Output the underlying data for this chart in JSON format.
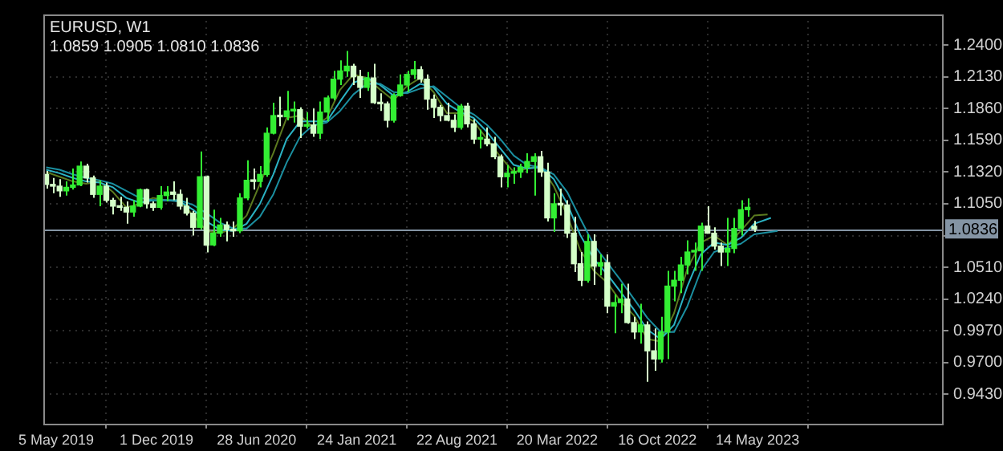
{
  "chart_data": {
    "type": "candlestick",
    "title": "EURUSD, W1",
    "subtitle": "1.0859 1.0905 1.0810 1.0836",
    "colors": [
      "#d4ffc8",
      "#d4ffc8",
      "#d4ffc8",
      "#33ee33",
      "#33ee33",
      "#33ee33",
      "#d4ffc8",
      "#d4ffc8",
      "#33ee33",
      "#d4ffc8",
      "#d4ffc8",
      "#d4ffc8",
      "#d4ffc8",
      "#33ee33",
      "#33ee33",
      "#d4ffc8",
      "#d4ffc8",
      "#33ee33",
      "#33ee33",
      "#d4ffc8",
      "#d4ffc8",
      "#d4ffc8",
      "#d4ffc8",
      "#33ee33",
      "#d4ffc8",
      "#33ee33",
      "#33ee33",
      "#d4ffc8",
      "#d4ffc8",
      "#33ee33",
      "#33ee33",
      "#d4ffc8",
      "#33ee33",
      "#33ee33",
      "#33ee33",
      "#d4ffc8",
      "#33ee33",
      "#33ee33",
      "#d4ffc8",
      "#33ee33",
      "#d4ffc8",
      "#33ee33",
      "#33ee33",
      "#33ee33",
      "#33ee33",
      "#33ee33",
      "#d4ffc8",
      "#d4ffc8",
      "#33ee33",
      "#d4ffc8",
      "#d4ffc8",
      "#d4ffc8",
      "#33ee33",
      "#33ee33",
      "#33ee33",
      "#33ee33",
      "#d4ffc8",
      "#d4ffc8",
      "#d4ffc8",
      "#d4ffc8",
      "#d4ffc8",
      "#d4ffc8",
      "#33ee33",
      "#d4ffc8",
      "#d4ffc8",
      "#33ee33",
      "#d4ffc8",
      "#d4ffc8",
      "#d4ffc8",
      "#33ee33",
      "#33ee33",
      "#33ee33",
      "#33ee33",
      "#33ee33",
      "#d4ffc8",
      "#d4ffc8",
      "#33ee33",
      "#d4ffc8",
      "#d4ffc8",
      "#d4ffc8",
      "#d4ffc8",
      "#33ee33",
      "#d4ffc8",
      "#33ee33",
      "#d4ffc8",
      "#33ee33",
      "#33ee33",
      "#d4ffc8",
      "#d4ffc8",
      "#33ee33",
      "#d4ffc8",
      "#d4ffc8",
      "#33ee33",
      "#33ee33",
      "#33ee33",
      "#33ee33",
      "#33ee33",
      "#33ee33",
      "#33ee33",
      "#d4ffc8",
      "#d4ffc8",
      "#d4ffc8",
      "#33ee33",
      "#33ee33",
      "#33ee33",
      "#33ee33",
      "#d4ffc8"
    ],
    "grid": true,
    "legend": false,
    "xlim": [
      "2019-04-08",
      "2024-06-07"
    ],
    "xticks": [
      {
        "value": "2019-05-05",
        "label": "5 May 2019"
      },
      {
        "value": "2019-12-01",
        "label": "1 Dec 2019"
      },
      {
        "value": "2020-06-28",
        "label": "28 Jun 2020"
      },
      {
        "value": "2021-01-24",
        "label": "24 Jan 2021"
      },
      {
        "value": "2021-08-22",
        "label": "22 Aug 2021"
      },
      {
        "value": "2022-03-20",
        "label": "20 Mar 2022"
      },
      {
        "value": "2022-10-16",
        "label": "16 Oct 2022"
      },
      {
        "value": "2023-05-14",
        "label": "14 May 2023"
      }
    ],
    "ylim": [
      0.918,
      1.266
    ],
    "yticks": [
      {
        "value": 0.943,
        "label": "0.9430"
      },
      {
        "value": 0.97,
        "label": "0.9700"
      },
      {
        "value": 0.997,
        "label": "0.9970"
      },
      {
        "value": 1.024,
        "label": "1.0240"
      },
      {
        "value": 1.051,
        "label": "1.0510"
      },
      {
        "value": 1.078,
        "label": null
      },
      {
        "value": 1.105,
        "label": "1.1050"
      },
      {
        "value": 1.132,
        "label": "1.1320"
      },
      {
        "value": 1.159,
        "label": "1.1590"
      },
      {
        "value": 1.186,
        "label": "1.1860"
      },
      {
        "value": 1.213,
        "label": "1.2130"
      },
      {
        "value": 1.24,
        "label": "1.2400"
      }
    ],
    "ref_lines": [
      {
        "axis": "y",
        "value": 1.0836,
        "label": "1.0836",
        "color": "#8494a4"
      }
    ],
    "x": [
      "2019-04-14",
      "2019-04-28",
      "2019-05-12",
      "2019-05-26",
      "2019-06-09",
      "2019-06-23",
      "2019-07-07",
      "2019-07-21",
      "2019-08-04",
      "2019-08-18",
      "2019-09-01",
      "2019-09-15",
      "2019-09-29",
      "2019-10-13",
      "2019-10-27",
      "2019-11-10",
      "2019-11-24",
      "2019-12-08",
      "2019-12-22",
      "2020-01-05",
      "2020-01-19",
      "2020-02-02",
      "2020-02-16",
      "2020-03-01",
      "2020-03-15",
      "2020-03-29",
      "2020-04-12",
      "2020-04-26",
      "2020-05-10",
      "2020-05-24",
      "2020-06-07",
      "2020-06-21",
      "2020-07-05",
      "2020-07-19",
      "2020-08-02",
      "2020-08-16",
      "2020-08-30",
      "2020-09-13",
      "2020-09-27",
      "2020-10-11",
      "2020-10-25",
      "2020-11-08",
      "2020-11-22",
      "2020-12-06",
      "2020-12-20",
      "2021-01-03",
      "2021-01-17",
      "2021-01-31",
      "2021-02-14",
      "2021-02-28",
      "2021-03-14",
      "2021-03-28",
      "2021-04-11",
      "2021-04-25",
      "2021-05-09",
      "2021-05-23",
      "2021-06-06",
      "2021-06-20",
      "2021-07-04",
      "2021-07-18",
      "2021-08-01",
      "2021-08-15",
      "2021-08-29",
      "2021-09-12",
      "2021-09-26",
      "2021-10-10",
      "2021-10-24",
      "2021-11-07",
      "2021-11-21",
      "2021-12-05",
      "2021-12-19",
      "2022-01-02",
      "2022-01-16",
      "2022-01-30",
      "2022-02-13",
      "2022-02-27",
      "2022-03-13",
      "2022-03-27",
      "2022-04-10",
      "2022-04-24",
      "2022-05-08",
      "2022-05-22",
      "2022-06-05",
      "2022-06-19",
      "2022-07-03",
      "2022-07-17",
      "2022-07-31",
      "2022-08-14",
      "2022-08-28",
      "2022-09-11",
      "2022-09-25",
      "2022-10-09",
      "2022-10-23",
      "2022-11-06",
      "2022-11-20",
      "2022-12-04",
      "2022-12-18",
      "2023-01-01",
      "2023-01-15",
      "2023-01-29",
      "2023-02-12",
      "2023-02-26",
      "2023-03-12",
      "2023-03-26",
      "2023-04-09",
      "2023-04-23",
      "2023-05-07"
    ],
    "ohlc": [
      [
        1.13,
        1.133,
        1.118,
        1.1215
      ],
      [
        1.1215,
        1.127,
        1.114,
        1.12
      ],
      [
        1.12,
        1.126,
        1.111,
        1.116
      ],
      [
        1.116,
        1.124,
        1.112,
        1.119
      ],
      [
        1.119,
        1.135,
        1.117,
        1.121
      ],
      [
        1.121,
        1.141,
        1.12,
        1.137
      ],
      [
        1.137,
        1.139,
        1.123,
        1.127
      ],
      [
        1.127,
        1.129,
        1.11,
        1.113
      ],
      [
        1.113,
        1.125,
        1.103,
        1.12
      ],
      [
        1.12,
        1.123,
        1.106,
        1.108
      ],
      [
        1.108,
        1.11,
        1.096,
        1.103
      ],
      [
        1.103,
        1.111,
        1.099,
        1.102
      ],
      [
        1.102,
        1.107,
        1.088,
        1.098
      ],
      [
        1.098,
        1.108,
        1.094,
        1.103
      ],
      [
        1.103,
        1.118,
        1.102,
        1.117
      ],
      [
        1.117,
        1.118,
        1.101,
        1.105
      ],
      [
        1.105,
        1.107,
        1.099,
        1.102
      ],
      [
        1.102,
        1.12,
        1.1,
        1.112
      ],
      [
        1.112,
        1.12,
        1.107,
        1.115
      ],
      [
        1.115,
        1.124,
        1.108,
        1.113
      ],
      [
        1.113,
        1.117,
        1.1,
        1.103
      ],
      [
        1.103,
        1.11,
        1.095,
        1.097
      ],
      [
        1.097,
        1.099,
        1.078,
        1.085
      ],
      [
        1.085,
        1.1495,
        1.083,
        1.128
      ],
      [
        1.128,
        1.129,
        1.0636,
        1.07
      ],
      [
        1.07,
        1.1,
        1.069,
        1.08
      ],
      [
        1.08,
        1.093,
        1.077,
        1.087
      ],
      [
        1.087,
        1.09,
        1.073,
        1.083
      ],
      [
        1.083,
        1.09,
        1.077,
        1.082
      ],
      [
        1.082,
        1.114,
        1.08,
        1.11
      ],
      [
        1.11,
        1.142,
        1.108,
        1.125
      ],
      [
        1.125,
        1.135,
        1.117,
        1.124
      ],
      [
        1.124,
        1.137,
        1.119,
        1.13
      ],
      [
        1.13,
        1.17,
        1.128,
        1.165
      ],
      [
        1.165,
        1.191,
        1.164,
        1.18
      ],
      [
        1.18,
        1.196,
        1.171,
        1.179
      ],
      [
        1.179,
        1.201,
        1.176,
        1.184
      ],
      [
        1.184,
        1.192,
        1.174,
        1.185
      ],
      [
        1.185,
        1.187,
        1.161,
        1.171
      ],
      [
        1.171,
        1.183,
        1.169,
        1.172
      ],
      [
        1.172,
        1.186,
        1.162,
        1.165
      ],
      [
        1.165,
        1.192,
        1.16,
        1.183
      ],
      [
        1.183,
        1.197,
        1.175,
        1.195
      ],
      [
        1.195,
        1.218,
        1.193,
        1.211
      ],
      [
        1.211,
        1.227,
        1.206,
        1.218
      ],
      [
        1.218,
        1.2349,
        1.213,
        1.222
      ],
      [
        1.222,
        1.224,
        1.206,
        1.213
      ],
      [
        1.213,
        1.219,
        1.195,
        1.204
      ],
      [
        1.204,
        1.217,
        1.201,
        1.212
      ],
      [
        1.212,
        1.224,
        1.19,
        1.191
      ],
      [
        1.191,
        1.199,
        1.184,
        1.19
      ],
      [
        1.19,
        1.192,
        1.17,
        1.176
      ],
      [
        1.176,
        1.199,
        1.174,
        1.197
      ],
      [
        1.197,
        1.215,
        1.196,
        1.206
      ],
      [
        1.206,
        1.218,
        1.2,
        1.215
      ],
      [
        1.215,
        1.2265,
        1.211,
        1.219
      ],
      [
        1.219,
        1.222,
        1.208,
        1.211
      ],
      [
        1.211,
        1.215,
        1.185,
        1.194
      ],
      [
        1.194,
        1.198,
        1.178,
        1.187
      ],
      [
        1.187,
        1.189,
        1.175,
        1.18
      ],
      [
        1.18,
        1.191,
        1.175,
        1.176
      ],
      [
        1.176,
        1.181,
        1.166,
        1.17
      ],
      [
        1.17,
        1.19,
        1.168,
        1.188
      ],
      [
        1.188,
        1.191,
        1.17,
        1.173
      ],
      [
        1.173,
        1.177,
        1.156,
        1.16
      ],
      [
        1.16,
        1.168,
        1.152,
        1.16
      ],
      [
        1.16,
        1.17,
        1.154,
        1.156
      ],
      [
        1.156,
        1.162,
        1.143,
        1.145
      ],
      [
        1.145,
        1.147,
        1.119,
        1.128
      ],
      [
        1.128,
        1.138,
        1.119,
        1.131
      ],
      [
        1.131,
        1.136,
        1.122,
        1.132
      ],
      [
        1.132,
        1.139,
        1.127,
        1.136
      ],
      [
        1.136,
        1.148,
        1.131,
        1.141
      ],
      [
        1.141,
        1.148,
        1.112,
        1.145
      ],
      [
        1.145,
        1.15,
        1.128,
        1.132
      ],
      [
        1.132,
        1.14,
        1.09,
        1.093
      ],
      [
        1.093,
        1.114,
        1.081,
        1.105
      ],
      [
        1.105,
        1.118,
        1.095,
        1.104
      ],
      [
        1.104,
        1.108,
        1.076,
        1.08
      ],
      [
        1.08,
        1.094,
        1.047,
        1.054
      ],
      [
        1.054,
        1.064,
        1.035,
        1.04
      ],
      [
        1.04,
        1.079,
        1.038,
        1.073
      ],
      [
        1.073,
        1.079,
        1.036,
        1.052
      ],
      [
        1.052,
        1.062,
        1.044,
        1.055
      ],
      [
        1.055,
        1.062,
        1.012,
        1.018
      ],
      [
        1.018,
        1.028,
        0.995,
        1.021
      ],
      [
        1.021,
        1.037,
        1.012,
        1.024
      ],
      [
        1.024,
        1.037,
        1.003,
        1.004
      ],
      [
        1.004,
        1.009,
        0.99,
        0.996
      ],
      [
        0.996,
        1.02,
        0.986,
        1.002
      ],
      [
        1.002,
        1.005,
        0.9536,
        0.98
      ],
      [
        0.98,
        0.999,
        0.963,
        0.973
      ],
      [
        0.973,
        1.009,
        0.97,
        0.996
      ],
      [
        0.996,
        1.048,
        0.973,
        1.035
      ],
      [
        1.035,
        1.048,
        1.022,
        1.04
      ],
      [
        1.04,
        1.06,
        1.029,
        1.053
      ],
      [
        1.053,
        1.074,
        1.045,
        1.064
      ],
      [
        1.064,
        1.072,
        1.048,
        1.065
      ],
      [
        1.065,
        1.089,
        1.048,
        1.086
      ],
      [
        1.086,
        1.103,
        1.08,
        1.08
      ],
      [
        1.08,
        1.085,
        1.066,
        1.069
      ],
      [
        1.069,
        1.072,
        1.052,
        1.064
      ],
      [
        1.064,
        1.093,
        1.052,
        1.067
      ],
      [
        1.067,
        1.093,
        1.063,
        1.084
      ],
      [
        1.084,
        1.108,
        1.078,
        1.1
      ],
      [
        1.1,
        1.1095,
        1.094,
        1.102
      ],
      [
        1.0859,
        1.0905,
        1.081,
        1.0836
      ]
    ],
    "series": [
      {
        "type": "line",
        "color": "#1b8fa0",
        "x": [
          "2019-04-14",
          "2019-05-12",
          "2019-06-09",
          "2019-07-07",
          "2019-08-04",
          "2019-09-01",
          "2019-09-29",
          "2019-10-27",
          "2019-11-24",
          "2019-12-22",
          "2020-01-19",
          "2020-02-16",
          "2020-03-15",
          "2020-04-12",
          "2020-05-10",
          "2020-06-07",
          "2020-07-05",
          "2020-08-02",
          "2020-08-30",
          "2020-09-27",
          "2020-10-25",
          "2020-11-22",
          "2020-12-20",
          "2021-01-17",
          "2021-02-14",
          "2021-03-14",
          "2021-04-11",
          "2021-05-09",
          "2021-06-06",
          "2021-07-04",
          "2021-08-01",
          "2021-08-29",
          "2021-09-26",
          "2021-10-24",
          "2021-11-21",
          "2021-12-19",
          "2022-01-16",
          "2022-02-13",
          "2022-03-13",
          "2022-04-10",
          "2022-05-08",
          "2022-06-05",
          "2022-07-03",
          "2022-07-31",
          "2022-08-28",
          "2022-09-25",
          "2022-10-23",
          "2022-11-20",
          "2022-12-18",
          "2023-01-15",
          "2023-02-12",
          "2023-03-12",
          "2023-04-09",
          "2023-05-07",
          "2023-06-25"
        ],
        "values": [
          1.136,
          1.134,
          1.13,
          1.127,
          1.125,
          1.122,
          1.116,
          1.11,
          1.108,
          1.108,
          1.108,
          1.104,
          1.097,
          1.089,
          1.084,
          1.084,
          1.094,
          1.113,
          1.14,
          1.162,
          1.172,
          1.174,
          1.184,
          1.198,
          1.207,
          1.207,
          1.2,
          1.199,
          1.203,
          1.205,
          1.196,
          1.187,
          1.181,
          1.172,
          1.16,
          1.146,
          1.138,
          1.136,
          1.13,
          1.115,
          1.092,
          1.07,
          1.055,
          1.04,
          1.024,
          1.008,
          0.996,
          0.996,
          1.018,
          1.048,
          1.064,
          1.068,
          1.071,
          1.079,
          1.082
        ]
      },
      {
        "type": "line",
        "color": "#2bb3c4",
        "x": [
          "2019-04-14",
          "2019-05-12",
          "2019-06-09",
          "2019-07-07",
          "2019-08-04",
          "2019-09-01",
          "2019-09-29",
          "2019-10-27",
          "2019-11-24",
          "2019-12-22",
          "2020-01-19",
          "2020-02-16",
          "2020-03-15",
          "2020-04-12",
          "2020-05-10",
          "2020-06-07",
          "2020-07-05",
          "2020-08-02",
          "2020-08-30",
          "2020-09-27",
          "2020-10-25",
          "2020-11-22",
          "2020-12-20",
          "2021-01-17",
          "2021-02-14",
          "2021-03-14",
          "2021-04-11",
          "2021-05-09",
          "2021-06-06",
          "2021-07-04",
          "2021-08-01",
          "2021-08-29",
          "2021-09-26",
          "2021-10-24",
          "2021-11-21",
          "2021-12-19",
          "2022-01-16",
          "2022-02-13",
          "2022-03-13",
          "2022-04-10",
          "2022-05-08",
          "2022-06-05",
          "2022-07-03",
          "2022-07-31",
          "2022-08-28",
          "2022-09-25",
          "2022-10-23",
          "2022-11-20",
          "2022-12-18",
          "2023-01-15",
          "2023-02-12",
          "2023-03-12",
          "2023-04-09",
          "2023-05-07",
          "2023-06-11"
        ],
        "values": [
          1.134,
          1.131,
          1.127,
          1.124,
          1.123,
          1.119,
          1.11,
          1.106,
          1.108,
          1.108,
          1.107,
          1.1,
          1.09,
          1.083,
          1.082,
          1.088,
          1.105,
          1.13,
          1.16,
          1.175,
          1.175,
          1.175,
          1.192,
          1.208,
          1.212,
          1.206,
          1.197,
          1.2,
          1.207,
          1.204,
          1.19,
          1.183,
          1.178,
          1.166,
          1.152,
          1.138,
          1.135,
          1.136,
          1.126,
          1.105,
          1.078,
          1.058,
          1.045,
          1.03,
          1.015,
          0.998,
          0.99,
          1.002,
          1.035,
          1.062,
          1.072,
          1.07,
          1.076,
          1.088,
          1.093
        ]
      },
      {
        "type": "line",
        "color": "#5b7a1f",
        "x": [
          "2019-04-14",
          "2019-05-12",
          "2019-06-09",
          "2019-07-07",
          "2019-08-04",
          "2019-09-01",
          "2019-09-29",
          "2019-10-27",
          "2019-11-24",
          "2019-12-22",
          "2020-01-19",
          "2020-02-16",
          "2020-03-15",
          "2020-04-12",
          "2020-05-10",
          "2020-06-07",
          "2020-07-05",
          "2020-08-02",
          "2020-08-30",
          "2020-09-27",
          "2020-10-25",
          "2020-11-22",
          "2020-12-20",
          "2021-01-17",
          "2021-02-14",
          "2021-03-14",
          "2021-04-11",
          "2021-05-09",
          "2021-06-06",
          "2021-07-04",
          "2021-08-01",
          "2021-08-29",
          "2021-09-26",
          "2021-10-24",
          "2021-11-21",
          "2021-12-19",
          "2022-01-16",
          "2022-02-13",
          "2022-03-13",
          "2022-04-10",
          "2022-05-08",
          "2022-06-05",
          "2022-07-03",
          "2022-07-31",
          "2022-08-28",
          "2022-09-25",
          "2022-10-23",
          "2022-11-20",
          "2022-12-18",
          "2023-01-15",
          "2023-02-12",
          "2023-03-12",
          "2023-04-09",
          "2023-05-07",
          "2023-06-04"
        ],
        "values": [
          1.132,
          1.128,
          1.124,
          1.122,
          1.124,
          1.115,
          1.102,
          1.105,
          1.11,
          1.108,
          1.108,
          1.095,
          1.082,
          1.08,
          1.084,
          1.095,
          1.122,
          1.148,
          1.178,
          1.18,
          1.17,
          1.178,
          1.202,
          1.215,
          1.212,
          1.202,
          1.193,
          1.205,
          1.212,
          1.2,
          1.182,
          1.182,
          1.175,
          1.16,
          1.145,
          1.132,
          1.135,
          1.137,
          1.12,
          1.095,
          1.065,
          1.048,
          1.038,
          1.022,
          1.01,
          0.99,
          0.988,
          1.012,
          1.05,
          1.072,
          1.078,
          1.07,
          1.082,
          1.095,
          1.096
        ]
      }
    ]
  }
}
